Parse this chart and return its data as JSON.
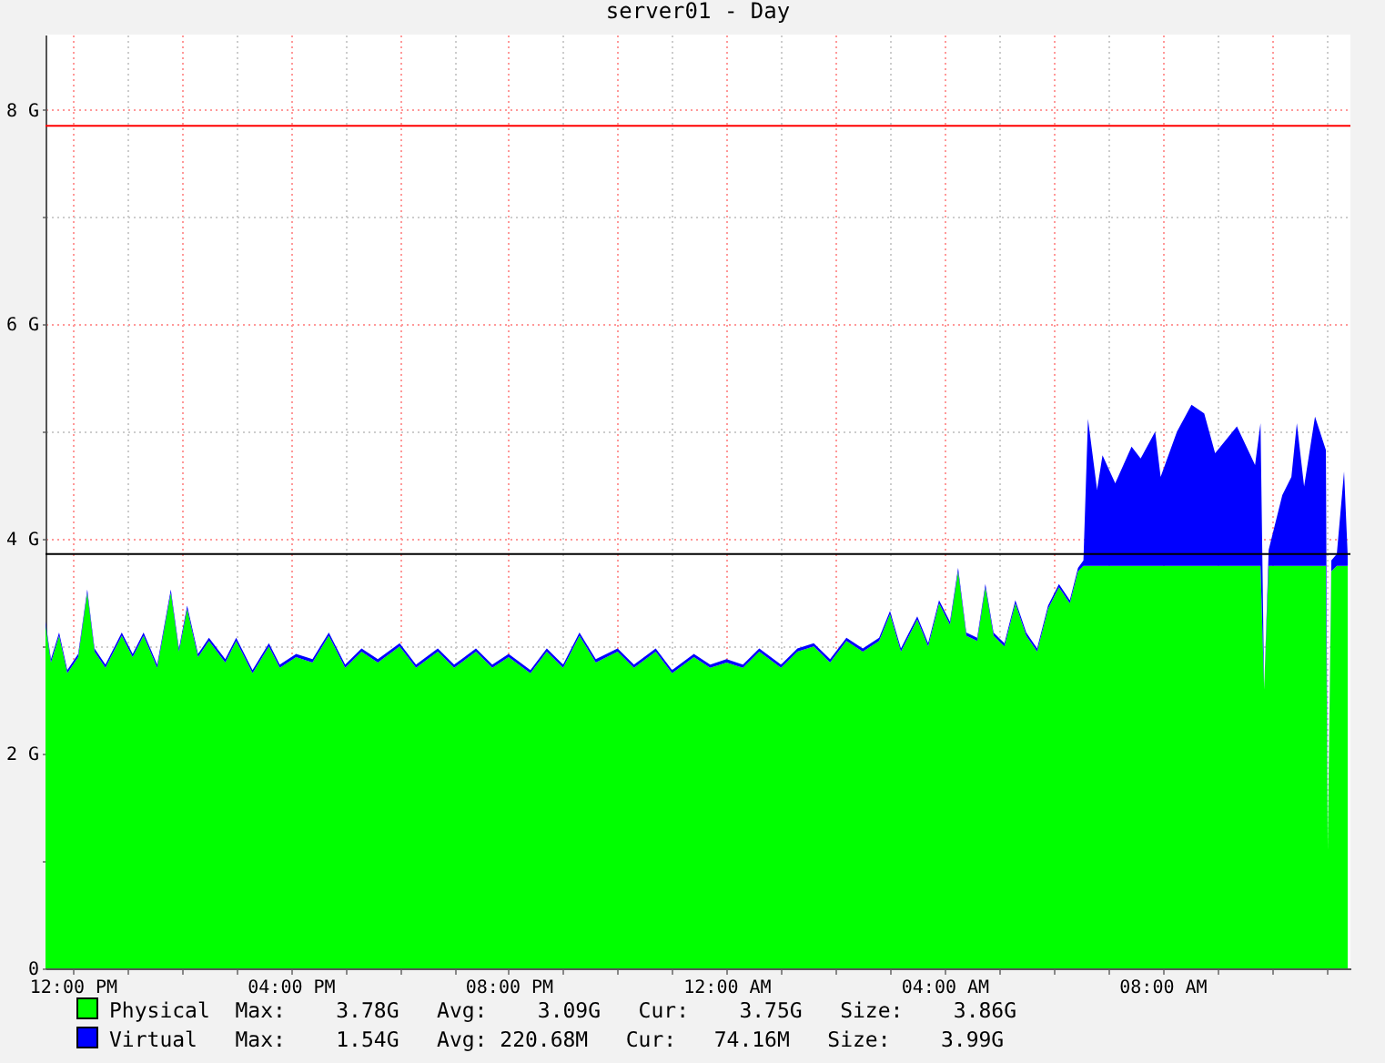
{
  "chart_data": {
    "type": "area",
    "title": "server01 - Day",
    "stacked": true,
    "grid": true,
    "legend": "bottom",
    "x": [
      "--01-01T11:30",
      "--01-01T11:36",
      "--01-01T11:45",
      "--01-01T11:54",
      "--01-01T12:06",
      "--01-01T12:16",
      "--01-01T12:24",
      "--01-01T12:36",
      "--01-01T12:54",
      "--01-01T13:06",
      "--01-01T13:18",
      "--01-01T13:33",
      "--01-01T13:48",
      "--01-01T13:57",
      "--01-01T14:06",
      "--01-01T14:18",
      "--01-01T14:30",
      "--01-01T14:48",
      "--01-01T15:00",
      "--01-01T15:18",
      "--01-01T15:36",
      "--01-01T15:48",
      "--01-01T16:06",
      "--01-01T16:24",
      "--01-01T16:42",
      "--01-01T17:00",
      "--01-01T17:18",
      "--01-01T17:36",
      "--01-01T18:00",
      "--01-01T18:18",
      "--01-01T18:42",
      "--01-01T19:00",
      "--01-01T19:24",
      "--01-01T19:42",
      "--01-01T20:00",
      "--01-01T20:24",
      "--01-01T20:42",
      "--01-01T21:00",
      "--01-01T21:18",
      "--01-01T21:36",
      "--01-01T22:00",
      "--01-01T22:18",
      "--01-01T22:42",
      "--01-01T23:00",
      "--01-01T23:24",
      "--01-01T23:42",
      "--01-02T00:00",
      "--01-02T00:18",
      "--01-02T00:36",
      "--01-02T01:00",
      "--01-02T01:18",
      "--01-02T01:36",
      "--01-02T01:54",
      "--01-02T02:12",
      "--01-02T02:30",
      "--01-02T02:48",
      "--01-02T03:00",
      "--01-02T03:12",
      "--01-02T03:30",
      "--01-02T03:42",
      "--01-02T03:54",
      "--01-02T04:06",
      "--01-02T04:15",
      "--01-02T04:24",
      "--01-02T04:36",
      "--01-02T04:45",
      "--01-02T04:54",
      "--01-02T05:06",
      "--01-02T05:18",
      "--01-02T05:30",
      "--01-02T05:42",
      "--01-02T05:54",
      "--01-02T06:06",
      "--01-02T06:18",
      "--01-02T06:27",
      "--01-02T06:33",
      "--01-02T06:38",
      "--01-02T06:48",
      "--01-02T06:54",
      "--01-02T07:08",
      "--01-02T07:26",
      "--01-02T07:36",
      "--01-02T07:52",
      "--01-02T07:58",
      "--01-02T08:16",
      "--01-02T08:32",
      "--01-02T08:46",
      "--01-02T08:58",
      "--01-02T09:22",
      "--01-02T09:42",
      "--01-02T09:48",
      "--01-02T09:52",
      "--01-02T09:57",
      "--01-02T10:12",
      "--01-02T10:22",
      "--01-02T10:28",
      "--01-02T10:36",
      "--01-02T10:48",
      "--01-02T11:00",
      "--01-02T11:02",
      "--01-02T11:06",
      "--01-02T11:12",
      "--01-02T11:20",
      "--01-02T11:24"
    ],
    "series": [
      {
        "name": "Physical",
        "color": "#00ff00",
        "values": [
          3.2,
          2.85,
          3.1,
          2.75,
          2.9,
          3.5,
          2.95,
          2.8,
          3.1,
          2.9,
          3.1,
          2.8,
          3.5,
          2.95,
          3.35,
          2.9,
          3.05,
          2.85,
          3.05,
          2.75,
          3.0,
          2.8,
          2.9,
          2.85,
          3.1,
          2.8,
          2.95,
          2.85,
          3.0,
          2.8,
          2.95,
          2.8,
          2.95,
          2.8,
          2.9,
          2.75,
          2.95,
          2.8,
          3.1,
          2.85,
          2.95,
          2.8,
          2.95,
          2.75,
          2.9,
          2.8,
          2.85,
          2.8,
          2.95,
          2.8,
          2.95,
          3.0,
          2.85,
          3.05,
          2.95,
          3.05,
          3.3,
          2.95,
          3.25,
          3.0,
          3.4,
          3.2,
          3.7,
          3.1,
          3.05,
          3.55,
          3.1,
          3.0,
          3.4,
          3.1,
          2.95,
          3.35,
          3.55,
          3.4,
          3.7,
          3.75,
          3.75,
          3.75,
          3.75,
          3.75,
          3.75,
          3.75,
          3.75,
          3.75,
          3.75,
          3.75,
          3.75,
          3.75,
          3.75,
          3.75,
          3.75,
          2.6,
          3.75,
          3.75,
          3.75,
          3.75,
          3.75,
          3.75,
          3.75,
          1.1,
          3.7,
          3.75,
          3.75,
          3.75
        ]
      },
      {
        "name": "Virtual",
        "color": "#0000ff",
        "values": [
          0.03,
          0.03,
          0.03,
          0.03,
          0.03,
          0.03,
          0.03,
          0.03,
          0.03,
          0.03,
          0.03,
          0.03,
          0.03,
          0.03,
          0.03,
          0.03,
          0.03,
          0.03,
          0.03,
          0.03,
          0.03,
          0.03,
          0.03,
          0.03,
          0.03,
          0.03,
          0.03,
          0.03,
          0.03,
          0.03,
          0.03,
          0.03,
          0.03,
          0.03,
          0.03,
          0.03,
          0.03,
          0.03,
          0.03,
          0.03,
          0.03,
          0.03,
          0.03,
          0.03,
          0.03,
          0.03,
          0.03,
          0.03,
          0.03,
          0.03,
          0.03,
          0.03,
          0.03,
          0.03,
          0.03,
          0.03,
          0.03,
          0.03,
          0.03,
          0.03,
          0.03,
          0.03,
          0.03,
          0.03,
          0.03,
          0.03,
          0.03,
          0.03,
          0.03,
          0.03,
          0.03,
          0.03,
          0.03,
          0.03,
          0.03,
          0.05,
          1.37,
          0.71,
          1.03,
          0.77,
          1.11,
          1.0,
          1.25,
          0.83,
          1.25,
          1.5,
          1.42,
          1.05,
          1.3,
          0.94,
          1.33,
          0,
          0.15,
          0.66,
          0.83,
          1.33,
          0.74,
          1.39,
          1.08,
          0,
          0.1,
          0.11,
          0.88,
          0.1
        ]
      }
    ],
    "xlim": [
      "--01-01T11:30",
      "--01-02T11:27"
    ],
    "xticks": [
      {
        "value": "--01-01T12:00",
        "label": "12:00 PM"
      },
      {
        "value": "--01-01T13:00",
        "label": null
      },
      {
        "value": "--01-01T14:00",
        "label": null
      },
      {
        "value": "--01-01T15:00",
        "label": null
      },
      {
        "value": "--01-01T16:00",
        "label": "04:00 PM"
      },
      {
        "value": "--01-01T17:00",
        "label": null
      },
      {
        "value": "--01-01T18:00",
        "label": null
      },
      {
        "value": "--01-01T19:00",
        "label": null
      },
      {
        "value": "--01-01T20:00",
        "label": "08:00 PM"
      },
      {
        "value": "--01-01T21:00",
        "label": null
      },
      {
        "value": "--01-01T22:00",
        "label": null
      },
      {
        "value": "--01-01T23:00",
        "label": null
      },
      {
        "value": "--01-02T00:00",
        "label": "12:00 AM"
      },
      {
        "value": "--01-02T01:00",
        "label": null
      },
      {
        "value": "--01-02T02:00",
        "label": null
      },
      {
        "value": "--01-02T03:00",
        "label": null
      },
      {
        "value": "--01-02T04:00",
        "label": "04:00 AM"
      },
      {
        "value": "--01-02T05:00",
        "label": null
      },
      {
        "value": "--01-02T06:00",
        "label": null
      },
      {
        "value": "--01-02T07:00",
        "label": null
      },
      {
        "value": "--01-02T08:00",
        "label": "08:00 AM"
      },
      {
        "value": "--01-02T09:00",
        "label": null
      },
      {
        "value": "--01-02T10:00",
        "label": null
      },
      {
        "value": "--01-02T11:00",
        "label": null
      }
    ],
    "ylim": [
      0,
      8.7
    ],
    "yticks": [
      0,
      {
        "value": 1,
        "label": null
      },
      {
        "value": 2,
        "label": "2 G"
      },
      {
        "value": 3,
        "label": null
      },
      {
        "value": 4,
        "label": "4 G"
      },
      {
        "value": 5,
        "label": null
      },
      {
        "value": 6,
        "label": "6 G"
      },
      {
        "value": 7,
        "label": null
      },
      {
        "value": 8,
        "label": "8 G"
      }
    ],
    "ref_lines": [
      {
        "axis": "y",
        "value": 7.85,
        "color": "#ff0000"
      },
      {
        "axis": "y",
        "value": 3.86,
        "color": "#000000"
      }
    ],
    "annotations": [
      "Max:    3.78G   Avg:    3.09G   Cur:    3.75G   Size:    3.86G",
      "Max:    1.54G   Avg: 220.68M   Cur:   74.16M   Size:    3.99G"
    ]
  }
}
